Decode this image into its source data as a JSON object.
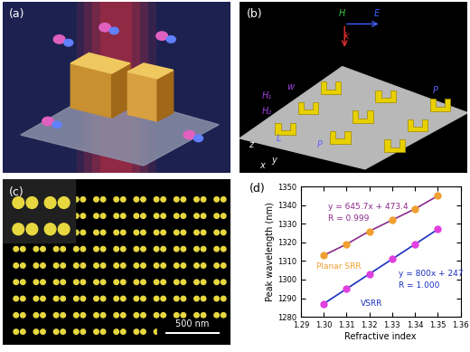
{
  "panels": [
    {
      "label": "(a)"
    },
    {
      "label": "(b)",
      "texts": [
        "H",
        "E",
        "k",
        "w",
        "H₁",
        "H₂",
        "L",
        "P",
        "P",
        "x",
        "y",
        "z"
      ]
    },
    {
      "label": "(c)",
      "scale_bar": "500 nm"
    }
  ],
  "chart_data": {
    "type": "line",
    "panel_label": "(d)",
    "xlabel": "Refractive index",
    "ylabel": "Peak wavelength (nm)",
    "x": [
      1.3,
      1.31,
      1.32,
      1.33,
      1.34,
      1.35
    ],
    "xlim": [
      1.29,
      1.36
    ],
    "xticks": [
      {
        "value": 1.29,
        "label": "1.29"
      },
      {
        "value": 1.3,
        "label": "1.30"
      },
      {
        "value": 1.31,
        "label": "1.31"
      },
      {
        "value": 1.32,
        "label": "1.32"
      },
      {
        "value": 1.33,
        "label": "1.33"
      },
      {
        "value": 1.34,
        "label": "1.34"
      },
      {
        "value": 1.35,
        "label": "1.35"
      },
      {
        "value": 1.36,
        "label": "1.36"
      }
    ],
    "ylim": [
      1280,
      1350
    ],
    "yticks": [
      1280,
      1290,
      1300,
      1310,
      1320,
      1330,
      1340,
      1350
    ],
    "grid": false,
    "series": [
      {
        "name": "Planar SRR",
        "color": "#f0a030",
        "marker": "o",
        "line_style": "solid",
        "values": [
          1313,
          1319,
          1326,
          1332,
          1338,
          1345
        ],
        "annotations": [
          "y = 645.7x + 473.4",
          "R = 0.999"
        ]
      },
      {
        "name": "VSRR",
        "color": "#e040e0",
        "marker": "o",
        "line_style": "solid",
        "values": [
          1287,
          1295,
          1303,
          1311,
          1319,
          1327
        ],
        "annotations": [
          "y = 800x + 247",
          "R = 1.000"
        ]
      }
    ]
  }
}
